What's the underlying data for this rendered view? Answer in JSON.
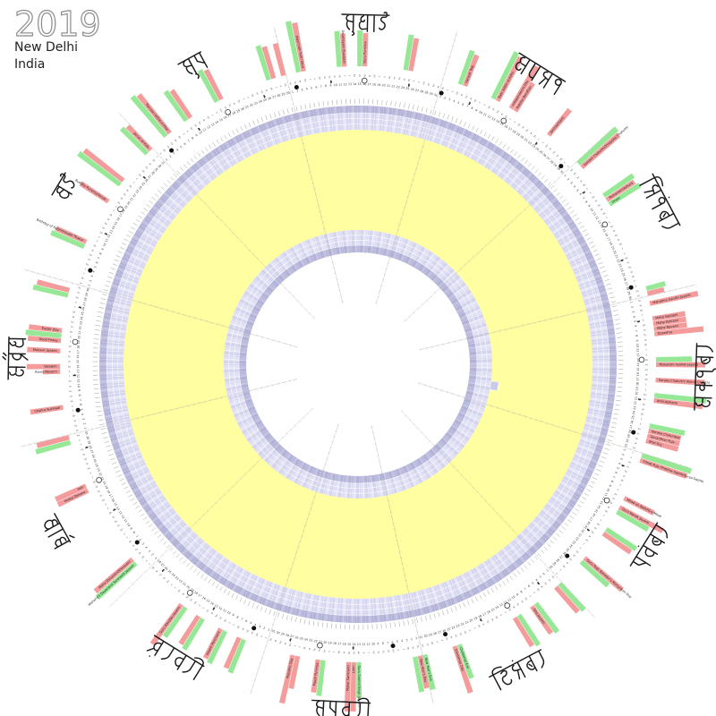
{
  "title": {
    "year": "2019",
    "city": "New Delhi",
    "country": "India"
  },
  "chart_data": {
    "type": "circular-calendar",
    "year": "2019",
    "location": [
      "New Delhi",
      "India"
    ],
    "weekday_letters": [
      "su",
      "m",
      "tu",
      "w",
      "th",
      "f",
      "s"
    ],
    "jan1_weekday_index": 2,
    "colors": {
      "holiday_red": "#f49c9c",
      "observance_green": "#96e896",
      "year_band_yellow": "#ffffa2",
      "ring_light": "#d4d4ee",
      "ring_light_alt": "#e2e2f6",
      "ring_dark": "#b2b2d8",
      "ring_dark_alt": "#bdbdde",
      "label_ink": "#222222"
    },
    "months": [
      {
        "name": "जनवरी",
        "days": 31,
        "events": [
          {
            "d": 1,
            "c": "r",
            "t": 2,
            "label": "New Year's Day"
          },
          {
            "d": 2,
            "c": "g",
            "t": 2,
            "label": ""
          },
          {
            "d": 13,
            "c": "g",
            "t": 2,
            "label": "Guru Gobind Singh Jayanti"
          },
          {
            "d": 14,
            "c": "r",
            "t": 3,
            "label": "Lohri"
          },
          {
            "d": 15,
            "c": "r",
            "t": 3,
            "label": "Makar Sankranti"
          },
          {
            "d": 20,
            "c": "g",
            "t": 2,
            "label": ""
          },
          {
            "d": 21,
            "c": "r",
            "t": 2,
            "label": "Paush Purnima"
          },
          {
            "d": 25,
            "c": "r",
            "t": 2,
            "label": ""
          },
          {
            "d": 26,
            "c": "r",
            "t": 3,
            "label": "Republic Day"
          }
        ],
        "moons": {
          "new": [
            6
          ],
          "full": [
            21
          ],
          "fq": [
            14
          ],
          "lq": [
            27
          ]
        }
      },
      {
        "name": "फ़रवरी",
        "days": 28,
        "events": [
          {
            "d": 5,
            "c": "g",
            "t": 2,
            "label": ""
          },
          {
            "d": 6,
            "c": "r",
            "t": 2,
            "label": ""
          },
          {
            "d": 9,
            "c": "g",
            "t": 2,
            "label": ""
          },
          {
            "d": 10,
            "c": "r",
            "t": 2,
            "label": "Vasant Panchami"
          },
          {
            "d": 14,
            "c": "g",
            "t": 2,
            "label": ""
          },
          {
            "d": 15,
            "c": "r",
            "t": 2,
            "label": ""
          },
          {
            "d": 18,
            "c": "g",
            "t": 2,
            "label": ""
          },
          {
            "d": 19,
            "c": "r",
            "t": 3,
            "label": "Guru Ravidas Jayanti"
          }
        ],
        "moons": {
          "new": [
            4
          ],
          "full": [
            19
          ],
          "fq": [
            13
          ],
          "lq": [
            26
          ]
        }
      },
      {
        "name": "मार्च",
        "days": 31,
        "events": [
          {
            "d": 3,
            "c": "g",
            "t": 3,
            "label": "Maharishi Dayanand Saraswati Jayanti"
          },
          {
            "d": 4,
            "c": "r",
            "t": 3,
            "label": "Maha Shivaratri/Shivaratri"
          },
          {
            "d": 20,
            "c": "r",
            "t": 2,
            "label": "Holika Dahana"
          },
          {
            "d": 21,
            "c": "r",
            "t": 2,
            "label": "Holi"
          },
          {
            "d": 30,
            "c": "g",
            "t": 2,
            "label": ""
          },
          {
            "d": 31,
            "c": "r",
            "t": 2,
            "label": ""
          }
        ],
        "moons": {
          "new": [
            6
          ],
          "full": [
            21
          ],
          "fq": [
            14
          ],
          "lq": [
            28
          ]
        }
      },
      {
        "name": "अप्रैल",
        "days": 30,
        "events": [
          {
            "d": 6,
            "c": "r",
            "t": 2,
            "label": "Chaitra Sukhladi"
          },
          {
            "d": 13,
            "c": "r",
            "t": 1,
            "label": "Rama Navami"
          },
          {
            "d": 14,
            "c": "r",
            "t": 2,
            "label": "Vaisakhi"
          },
          {
            "d": 17,
            "c": "r",
            "t": 2,
            "label": "Mahavir Jayanti"
          },
          {
            "d": 19,
            "c": "r",
            "t": 2,
            "label": "Good Friday"
          },
          {
            "d": 20,
            "c": "g",
            "t": 2,
            "label": ""
          },
          {
            "d": 21,
            "c": "r",
            "t": 2,
            "label": "Easter Day"
          },
          {
            "d": 28,
            "c": "g",
            "t": 2,
            "label": ""
          },
          {
            "d": 29,
            "c": "r",
            "t": 2,
            "label": ""
          }
        ],
        "moons": {
          "new": [
            5
          ],
          "full": [
            19
          ],
          "fq": [
            12
          ],
          "lq": [
            26
          ]
        }
      },
      {
        "name": "मई",
        "days": 31,
        "events": [
          {
            "d": 8,
            "c": "g",
            "t": 2,
            "label": ""
          },
          {
            "d": 9,
            "c": "r",
            "t": 2,
            "label": "Birthday of Rabindranath Thakur"
          },
          {
            "d": 18,
            "c": "r",
            "t": 2,
            "label": "Buddha Purnima/Vesak"
          },
          {
            "d": 22,
            "c": "g",
            "t": 3,
            "label": ""
          },
          {
            "d": 23,
            "c": "r",
            "t": 3,
            "label": ""
          },
          {
            "d": 30,
            "c": "g",
            "t": 2,
            "label": ""
          },
          {
            "d": 31,
            "c": "r",
            "t": 2,
            "label": "Jamat Ul-Vida"
          }
        ],
        "moons": {
          "new": [
            4
          ],
          "full": [
            18
          ],
          "fq": [
            12
          ],
          "lq": [
            26
          ]
        }
      },
      {
        "name": "जून",
        "days": 30,
        "events": [
          {
            "d": 4,
            "c": "g",
            "t": 3,
            "label": ""
          },
          {
            "d": 5,
            "c": "r",
            "t": 3,
            "label": "Ramzan Id/Eid-ul-Fitar"
          },
          {
            "d": 9,
            "c": "g",
            "t": 2,
            "label": ""
          },
          {
            "d": 10,
            "c": "r",
            "t": 2,
            "label": ""
          },
          {
            "d": 16,
            "c": "g",
            "t": 2,
            "label": ""
          },
          {
            "d": 17,
            "c": "r",
            "t": 2,
            "label": ""
          },
          {
            "d": 27,
            "c": "g",
            "t": 2,
            "label": ""
          },
          {
            "d": 28,
            "c": "r",
            "t": 2,
            "label": ""
          },
          {
            "d": 30,
            "c": "r",
            "t": 2,
            "label": ""
          }
        ],
        "moons": {
          "new": [
            3
          ],
          "full": [
            17
          ],
          "fq": [
            10
          ],
          "lq": [
            25
          ]
        }
      },
      {
        "name": "जुलाई",
        "days": 31,
        "events": [
          {
            "d": 3,
            "c": "g",
            "t": 3,
            "label": ""
          },
          {
            "d": 4,
            "c": "r",
            "t": 3,
            "label": "Jagannath Rath Yatra"
          },
          {
            "d": 11,
            "c": "g",
            "t": 2,
            "label": ""
          },
          {
            "d": 12,
            "c": "r",
            "t": 2,
            "label": "Devshayani Ekadashi"
          },
          {
            "d": 15,
            "c": "g",
            "t": 2,
            "label": ""
          },
          {
            "d": 16,
            "c": "r",
            "t": 2,
            "label": "Guru Purnima"
          },
          {
            "d": 24,
            "c": "g",
            "t": 2,
            "label": ""
          },
          {
            "d": 25,
            "c": "r",
            "t": 2,
            "label": ""
          }
        ],
        "moons": {
          "new": [
            2
          ],
          "full": [
            16
          ],
          "fq": [
            9
          ],
          "lq": [
            25
          ]
        }
      },
      {
        "name": "अगस्त",
        "days": 31,
        "events": [
          {
            "d": 4,
            "c": "g",
            "t": 2,
            "label": ""
          },
          {
            "d": 5,
            "c": "r",
            "t": 2,
            "label": "Hariyali Teej"
          },
          {
            "d": 11,
            "c": "g",
            "t": 3,
            "label": ""
          },
          {
            "d": 12,
            "c": "r",
            "t": 3,
            "label": "Bakr Id/Eid ul-Adha"
          },
          {
            "d": 15,
            "c": "r",
            "t": 3,
            "label": "Independence Day"
          },
          {
            "d": 16,
            "c": "r",
            "t": 2,
            "label": "Raksha Bandhan"
          },
          {
            "d": 24,
            "c": "r",
            "t": 2,
            "label": "Janmashtami"
          }
        ],
        "moons": {
          "new": [
            1,
            30
          ],
          "full": [
            15
          ],
          "fq": [
            7
          ],
          "lq": [
            23
          ]
        }
      },
      {
        "name": "सितंबर",
        "days": 30,
        "events": [
          {
            "d": 1,
            "c": "g",
            "t": 3,
            "label": ""
          },
          {
            "d": 2,
            "c": "r",
            "t": 3,
            "label": "Ganesh Chaturthi/Vinayaka Chaturthi"
          },
          {
            "d": 9,
            "c": "g",
            "t": 2,
            "label": ""
          },
          {
            "d": 10,
            "c": "r",
            "t": 2,
            "label": "Muharram/Ashura"
          },
          {
            "d": 11,
            "c": "g",
            "t": 2,
            "label": "Onam"
          },
          {
            "d": 29,
            "c": "g",
            "t": 1,
            "label": ""
          },
          {
            "d": 30,
            "c": "r",
            "t": 1,
            "label": ""
          }
        ],
        "moons": {
          "new": [
            28
          ],
          "full": [
            14
          ],
          "fq": [
            6
          ],
          "lq": [
            22
          ]
        }
      },
      {
        "name": "अक्तूबर",
        "days": 31,
        "events": [
          {
            "d": 2,
            "c": "r",
            "t": 3,
            "label": "Mahatma Gandhi Jayanti"
          },
          {
            "d": 5,
            "c": "r",
            "t": 2,
            "label": "Maha Saptami"
          },
          {
            "d": 6,
            "c": "r",
            "t": 2,
            "label": "Maha Ashtami"
          },
          {
            "d": 7,
            "c": "r",
            "t": 2,
            "label": "Maha Navami"
          },
          {
            "d": 8,
            "c": "r",
            "t": 3,
            "label": "Dussehra"
          },
          {
            "d": 13,
            "c": "g",
            "t": 2,
            "label": ""
          },
          {
            "d": 14,
            "c": "r",
            "t": 3,
            "label": "Maharishi Valmiki Jayanti"
          },
          {
            "d": 17,
            "c": "r",
            "t": 3,
            "label": "Karaka Chaturthi (Karva Chauth)"
          },
          {
            "d": 20,
            "c": "g",
            "t": 3,
            "label": ""
          },
          {
            "d": 21,
            "c": "r",
            "t": 3,
            "label": "Ahoi Ashtami"
          },
          {
            "d": 26,
            "c": "g",
            "t": 2,
            "label": ""
          },
          {
            "d": 27,
            "c": "r",
            "t": 2,
            "label": "Naraka Chaturdasi"
          },
          {
            "d": 28,
            "c": "r",
            "t": 2,
            "label": "Govardhan Puja"
          },
          {
            "d": 29,
            "c": "r",
            "t": 2,
            "label": "Bhai Duj"
          }
        ],
        "moons": {
          "new": [
            28
          ],
          "full": [
            13
          ],
          "fq": [
            5
          ],
          "lq": [
            21
          ]
        }
      },
      {
        "name": "नवंबर",
        "days": 30,
        "events": [
          {
            "d": 1,
            "c": "g",
            "t": 3,
            "label": ""
          },
          {
            "d": 2,
            "c": "r",
            "t": 3,
            "label": "Chhat Puja (Pratihar Sashti/Surya Sashti)"
          },
          {
            "d": 10,
            "c": "r",
            "t": 2,
            "label": "Milad un-Nabi/Id-e-Milad"
          },
          {
            "d": 12,
            "c": "r",
            "t": 3,
            "label": "Guru Nanak Jayanti"
          },
          {
            "d": 13,
            "c": "g",
            "t": 2,
            "label": ""
          },
          {
            "d": 17,
            "c": "g",
            "t": 2,
            "label": ""
          },
          {
            "d": 18,
            "c": "r",
            "t": 2,
            "label": ""
          },
          {
            "d": 24,
            "c": "r",
            "t": 3,
            "label": "Guru Tegh Bahadur's Martyrdom Day"
          },
          {
            "d": 25,
            "c": "g",
            "t": 2,
            "label": ""
          }
        ],
        "moons": {
          "new": [
            26
          ],
          "full": [
            12
          ],
          "fq": [
            4
          ],
          "lq": [
            19
          ]
        }
      },
      {
        "name": "दिसंबर",
        "days": 31,
        "events": [
          {
            "d": 1,
            "c": "g",
            "t": 2,
            "label": ""
          },
          {
            "d": 2,
            "c": "r",
            "t": 2,
            "label": ""
          },
          {
            "d": 7,
            "c": "g",
            "t": 2,
            "label": ""
          },
          {
            "d": 8,
            "c": "r",
            "t": 2,
            "label": "Gita Jayanti"
          },
          {
            "d": 11,
            "c": "g",
            "t": 2,
            "label": ""
          },
          {
            "d": 12,
            "c": "r",
            "t": 2,
            "label": ""
          },
          {
            "d": 24,
            "c": "g",
            "t": 2,
            "label": "Christmas Eve"
          },
          {
            "d": 25,
            "c": "r",
            "t": 3,
            "label": "Christmas Day"
          },
          {
            "d": 31,
            "c": "g",
            "t": 2,
            "label": "New Year's Eve"
          }
        ],
        "moons": {
          "new": [
            26
          ],
          "full": [
            12
          ],
          "fq": [
            4
          ],
          "lq": [
            18
          ]
        }
      }
    ]
  }
}
